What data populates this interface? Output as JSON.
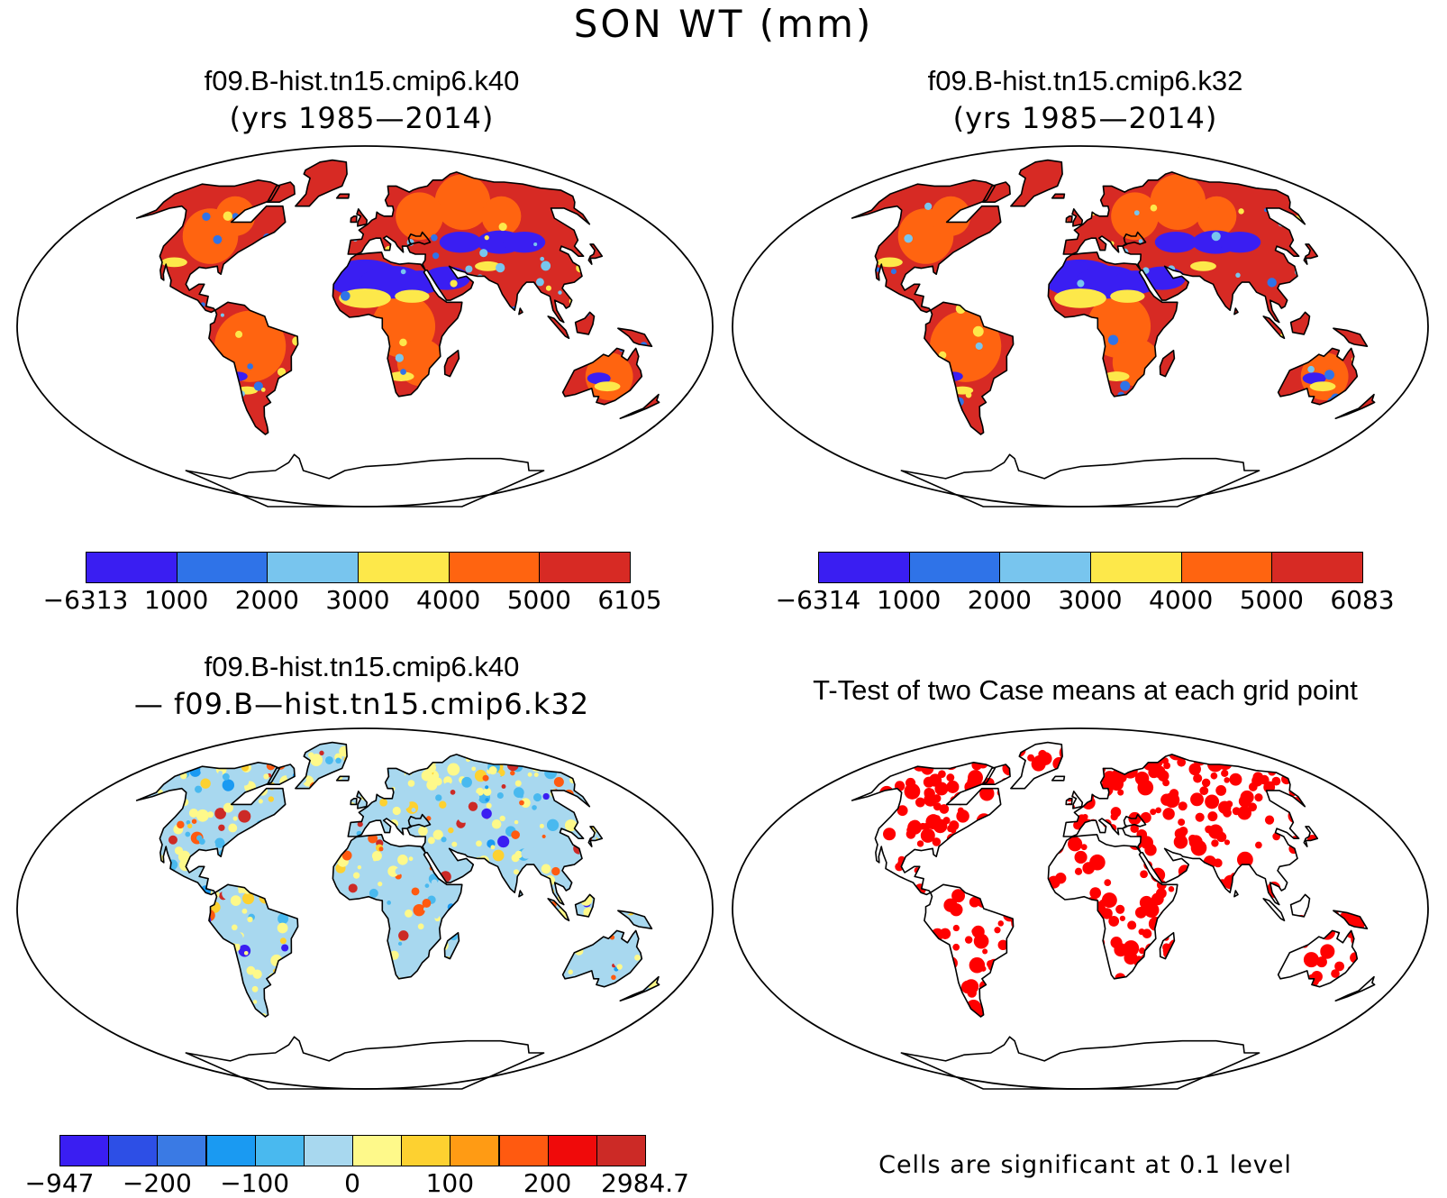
{
  "figure": {
    "title": "SON WT (mm)"
  },
  "panels": [
    {
      "id": "p1",
      "title_line1": "f09.B-hist.tn15.cmip6.k40",
      "title_line2": "(yrs 1985—2014)",
      "colorbar": {
        "colors": [
          "#3a1ef2",
          "#2f73e8",
          "#78c5ee",
          "#fde84a",
          "#ff6410",
          "#d72a24"
        ],
        "labels": [
          "−6313",
          "1000",
          "2000",
          "3000",
          "4000",
          "5000",
          "6105"
        ]
      },
      "shading": "mean-absolute"
    },
    {
      "id": "p2",
      "title_line1": "f09.B-hist.tn15.cmip6.k32",
      "title_line2": "(yrs 1985—2014)",
      "colorbar": {
        "colors": [
          "#3a1ef2",
          "#2f73e8",
          "#78c5ee",
          "#fde84a",
          "#ff6410",
          "#d72a24"
        ],
        "labels": [
          "−6314",
          "1000",
          "2000",
          "3000",
          "4000",
          "5000",
          "6083"
        ]
      },
      "shading": "mean-absolute"
    },
    {
      "id": "p3",
      "title_line1": "f09.B-hist.tn15.cmip6.k40",
      "title_line2": "— f09.B—hist.tn15.cmip6.k32",
      "colorbar": {
        "colors": [
          "#3a1ef2",
          "#2d4fe6",
          "#3a7ae4",
          "#1a9af2",
          "#49b9ef",
          "#a8d8ef",
          "#fef98a",
          "#fdd130",
          "#ff9b14",
          "#ff5a10",
          "#f00a0a",
          "#cc2a26"
        ],
        "labels": [
          "−947",
          "−200",
          "−100",
          "0",
          "100",
          "200",
          "2984.7"
        ]
      },
      "shading": "difference"
    },
    {
      "id": "p4",
      "title_line1": "T-Test of two Case means at each grid point",
      "note": "Cells are significant at 0.1 level",
      "sig_color": "#ff0000",
      "shading": "significance"
    }
  ]
}
